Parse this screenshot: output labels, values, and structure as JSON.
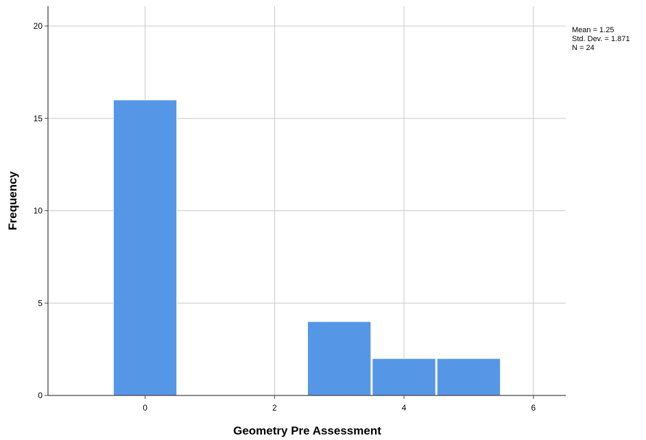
{
  "chart_data": {
    "type": "bar",
    "subtype": "histogram",
    "xlabel": "Geometry Pre Assessment",
    "ylabel": "Frequency",
    "xlim": [
      -1.5,
      6.5
    ],
    "ylim": [
      0,
      20
    ],
    "x_ticks": [
      "0",
      "2",
      "4",
      "6"
    ],
    "y_ticks": [
      "0",
      "5",
      "10",
      "15",
      "20"
    ],
    "x_tick_values": [
      0,
      2,
      4,
      6
    ],
    "y_tick_values": [
      0,
      5,
      10,
      15,
      20
    ],
    "bins": [
      {
        "start": -0.5,
        "end": 0.5,
        "value": 16
      },
      {
        "start": 2.5,
        "end": 3.5,
        "value": 4
      },
      {
        "start": 3.5,
        "end": 4.5,
        "value": 2
      },
      {
        "start": 4.5,
        "end": 5.5,
        "value": 2
      }
    ],
    "grid": true,
    "bar_color": "#5596E6",
    "stats": {
      "mean": "Mean = 1.25",
      "std_dev": "Std. Dev. = 1.871",
      "n": "N = 24"
    }
  }
}
